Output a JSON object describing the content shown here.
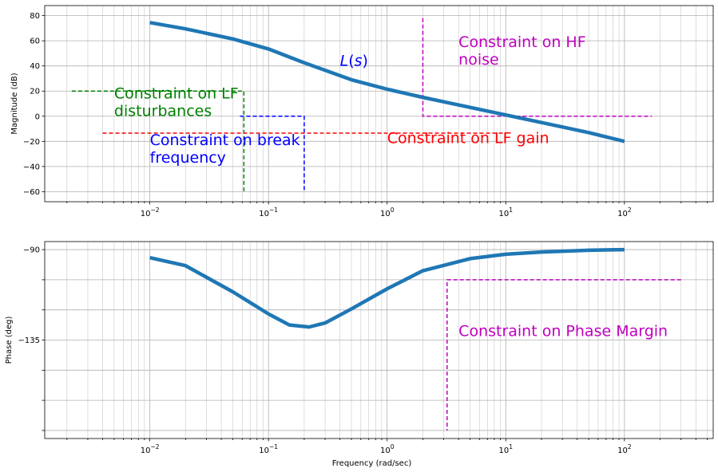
{
  "chart_data": [
    {
      "type": "line",
      "panel": "magnitude",
      "ylabel": "Magnitude (dB)",
      "xlabel": "",
      "xscale": "log",
      "xlim": [
        0.0013,
        560
      ],
      "ylim": [
        -68,
        88
      ],
      "yticks": [
        80,
        60,
        40,
        20,
        0,
        -20,
        -40,
        -60
      ],
      "ytick_labels": [
        "80",
        "60",
        "40",
        "20",
        "0",
        "−20",
        "−40",
        "−60"
      ],
      "xticks": [
        0.01,
        0.1,
        1,
        10,
        100
      ],
      "xtick_labels": [
        {
          "base": "10",
          "exp": "−2"
        },
        {
          "base": "10",
          "exp": "−1"
        },
        {
          "base": "10",
          "exp": "0"
        },
        {
          "base": "10",
          "exp": "1"
        },
        {
          "base": "10",
          "exp": "2"
        }
      ],
      "grid": true,
      "curve": {
        "color": "#1f77b4",
        "x": [
          0.01,
          0.02,
          0.05,
          0.1,
          0.2,
          0.5,
          1,
          2,
          5,
          10,
          20,
          50,
          100
        ],
        "y": [
          74.5,
          69.5,
          61.5,
          53.5,
          42.5,
          29,
          21.5,
          15,
          7,
          1,
          -5,
          -13,
          -20
        ]
      },
      "constraints": [
        {
          "color": "#008000",
          "x": [
            0.0022,
            0.062,
            0.062
          ],
          "y": [
            20,
            20,
            -60
          ]
        },
        {
          "color": "#0000ff",
          "x": [
            0.0575,
            0.2,
            0.2
          ],
          "y": [
            0,
            0,
            -60
          ]
        },
        {
          "color": "#ff0000",
          "x": [
            0.004,
            10
          ],
          "y": [
            -13.5,
            -13.5
          ]
        },
        {
          "color": "#bf00bf",
          "x": [
            2,
            2,
            170
          ],
          "y": [
            78,
            0,
            0
          ]
        }
      ],
      "annotations": [
        {
          "lines": [
            "$L(s)$"
          ],
          "color": "#0000ff",
          "x": 0.4,
          "y": 40,
          "italic": true
        },
        {
          "lines": [
            "Constraint on HF",
            "noise"
          ],
          "color": "#bf00bf",
          "x": 4,
          "y": 55
        },
        {
          "lines": [
            "Constraint on LF",
            "disturbances"
          ],
          "color": "#008000",
          "x": 0.005,
          "y": 14
        },
        {
          "lines": [
            "Constraint on break",
            "frequency"
          ],
          "color": "#0000ff",
          "x": 0.01,
          "y": -23
        },
        {
          "lines": [
            "Constraint on LF gain"
          ],
          "color": "#ff0000",
          "x": 1,
          "y": -21.5
        }
      ]
    },
    {
      "type": "line",
      "panel": "phase",
      "ylabel": "Phase (deg)",
      "xlabel": "Frequency (rad/sec)",
      "xscale": "log",
      "xlim": [
        0.0013,
        560
      ],
      "ylim": [
        -184,
        -86
      ],
      "yticks": [
        -90,
        -105,
        -120,
        -135,
        -150,
        -165,
        -180
      ],
      "ytick_labels": [
        "−90",
        "",
        "",
        "−135",
        "",
        "",
        ""
      ],
      "xticks": [
        0.01,
        0.1,
        1,
        10,
        100
      ],
      "xtick_labels": [
        {
          "base": "10",
          "exp": "−2"
        },
        {
          "base": "10",
          "exp": "−1"
        },
        {
          "base": "10",
          "exp": "0"
        },
        {
          "base": "10",
          "exp": "1"
        },
        {
          "base": "10",
          "exp": "2"
        }
      ],
      "grid": true,
      "curve": {
        "color": "#1f77b4",
        "x": [
          0.01,
          0.02,
          0.05,
          0.1,
          0.15,
          0.22,
          0.3,
          0.5,
          1,
          2,
          5,
          10,
          20,
          50,
          100
        ],
        "y": [
          -94,
          -98,
          -111,
          -122,
          -127.5,
          -128.5,
          -126.5,
          -119.5,
          -109.5,
          -100.5,
          -94.5,
          -92.3,
          -91.2,
          -90.3,
          -90
        ]
      },
      "constraints": [
        {
          "color": "#bf00bf",
          "x": [
            300,
            3.2,
            3.2
          ],
          "y": [
            -105,
            -105,
            -180
          ]
        }
      ],
      "annotations": [
        {
          "lines": [
            "Constraint on Phase Margin"
          ],
          "color": "#bf00bf",
          "x": 4,
          "y": -133
        }
      ]
    }
  ]
}
